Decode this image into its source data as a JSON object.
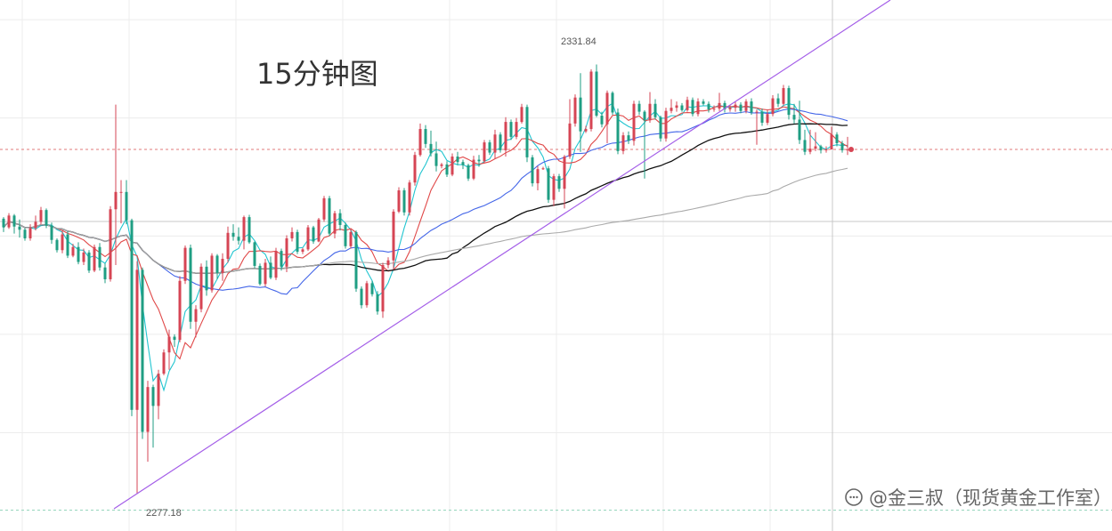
{
  "chart_data": {
    "type": "candlestick",
    "title": "15分钟图",
    "annotations": {
      "high_label": "2331.84",
      "low_label": "2277.18"
    },
    "y_range": [
      2272.5,
      2340.0
    ],
    "grid": true,
    "candles": [
      [
        2312.2,
        2312.4,
        2310.5,
        2311.1
      ],
      [
        2311.1,
        2312.9,
        2310.9,
        2312.6
      ],
      [
        2312.6,
        2312.8,
        2310.3,
        2311.2
      ],
      [
        2311.2,
        2312.1,
        2309.8,
        2310.8
      ],
      [
        2310.8,
        2311.0,
        2309.4,
        2309.7
      ],
      [
        2309.7,
        2311.5,
        2309.4,
        2311.0
      ],
      [
        2311.0,
        2312.6,
        2310.7,
        2311.8
      ],
      [
        2311.8,
        2313.7,
        2311.5,
        2313.3
      ],
      [
        2313.3,
        2313.5,
        2311.0,
        2311.3
      ],
      [
        2311.3,
        2311.7,
        2309.0,
        2309.5
      ],
      [
        2309.5,
        2309.7,
        2307.9,
        2308.2
      ],
      [
        2308.2,
        2310.7,
        2307.8,
        2310.2
      ],
      [
        2310.2,
        2310.6,
        2307.2,
        2307.5
      ],
      [
        2307.5,
        2309.0,
        2307.3,
        2308.6
      ],
      [
        2308.6,
        2309.2,
        2306.4,
        2306.7
      ],
      [
        2306.7,
        2308.4,
        2306.3,
        2307.9
      ],
      [
        2307.9,
        2308.2,
        2305.3,
        2305.6
      ],
      [
        2305.6,
        2308.9,
        2305.4,
        2308.6
      ],
      [
        2308.6,
        2309.1,
        2305.6,
        2306.0
      ],
      [
        2306.0,
        2306.5,
        2304.0,
        2304.5
      ],
      [
        2304.5,
        2313.8,
        2304.2,
        2313.4
      ],
      [
        2313.4,
        2326.7,
        2306.3,
        2315.6
      ],
      [
        2315.6,
        2317.1,
        2311.6,
        2315.6
      ],
      [
        2315.6,
        2317.1,
        2311.5,
        2312.0
      ],
      [
        2312.0,
        2312.2,
        2287.1,
        2287.9
      ],
      [
        2287.9,
        2306.8,
        2277.2,
        2305.7
      ],
      [
        2305.7,
        2306.0,
        2284.2,
        2285.1
      ],
      [
        2285.1,
        2291.6,
        2281.3,
        2290.8
      ],
      [
        2290.8,
        2291.1,
        2283.1,
        2288.4
      ],
      [
        2288.4,
        2293.0,
        2286.7,
        2292.5
      ],
      [
        2292.5,
        2295.6,
        2292.3,
        2295.2
      ],
      [
        2295.2,
        2298.1,
        2293.0,
        2297.2
      ],
      [
        2297.2,
        2297.5,
        2295.9,
        2296.8
      ],
      [
        2296.8,
        2304.9,
        2296.5,
        2304.3
      ],
      [
        2304.3,
        2308.8,
        2303.9,
        2308.5
      ],
      [
        2308.5,
        2308.9,
        2298.2,
        2299.1
      ],
      [
        2299.1,
        2301.2,
        2297.1,
        2300.7
      ],
      [
        2300.7,
        2306.5,
        2300.3,
        2306.1
      ],
      [
        2306.1,
        2306.9,
        2302.4,
        2303.1
      ],
      [
        2303.1,
        2307.8,
        2302.8,
        2307.5
      ],
      [
        2307.5,
        2307.7,
        2304.5,
        2305.3
      ],
      [
        2305.3,
        2307.8,
        2304.3,
        2307.1
      ],
      [
        2307.1,
        2311.2,
        2306.6,
        2310.4
      ],
      [
        2310.4,
        2311.5,
        2309.4,
        2309.9
      ],
      [
        2309.9,
        2311.1,
        2308.9,
        2309.4
      ],
      [
        2309.4,
        2312.6,
        2308.3,
        2312.4
      ],
      [
        2312.4,
        2312.7,
        2309.0,
        2309.2
      ],
      [
        2309.2,
        2309.3,
        2305.9,
        2306.2
      ],
      [
        2306.2,
        2306.5,
        2303.7,
        2303.9
      ],
      [
        2303.9,
        2307.1,
        2303.6,
        2306.6
      ],
      [
        2306.6,
        2307.4,
        2304.5,
        2304.7
      ],
      [
        2304.7,
        2308.5,
        2304.4,
        2308.1
      ],
      [
        2308.1,
        2308.4,
        2305.6,
        2306.1
      ],
      [
        2306.1,
        2310.1,
        2305.4,
        2309.7
      ],
      [
        2309.7,
        2311.1,
        2309.3,
        2310.5
      ],
      [
        2310.5,
        2310.8,
        2307.7,
        2308.0
      ],
      [
        2308.0,
        2308.5,
        2307.7,
        2308.3
      ],
      [
        2308.3,
        2311.4,
        2308.1,
        2311.1
      ],
      [
        2311.1,
        2311.3,
        2309.0,
        2309.3
      ],
      [
        2309.3,
        2312.3,
        2309.2,
        2312.1
      ],
      [
        2312.1,
        2315.1,
        2311.8,
        2314.8
      ],
      [
        2314.8,
        2315.1,
        2310.0,
        2310.3
      ],
      [
        2310.3,
        2313.2,
        2309.7,
        2312.9
      ],
      [
        2312.9,
        2313.4,
        2310.7,
        2311.4
      ],
      [
        2311.4,
        2311.7,
        2308.4,
        2308.7
      ],
      [
        2308.7,
        2310.9,
        2308.4,
        2310.5
      ],
      [
        2310.5,
        2310.7,
        2302.9,
        2303.3
      ],
      [
        2303.3,
        2303.6,
        2300.8,
        2301.2
      ],
      [
        2301.2,
        2304.3,
        2300.9,
        2304.0
      ],
      [
        2304.0,
        2304.3,
        2302.3,
        2302.6
      ],
      [
        2302.6,
        2303.0,
        2300.0,
        2300.4
      ],
      [
        2300.4,
        2306.6,
        2299.6,
        2306.3
      ],
      [
        2306.3,
        2307.3,
        2305.9,
        2306.9
      ],
      [
        2306.9,
        2313.4,
        2305.7,
        2313.1
      ],
      [
        2313.1,
        2316.2,
        2312.9,
        2315.8
      ],
      [
        2315.8,
        2316.1,
        2312.6,
        2313.0
      ],
      [
        2313.0,
        2317.1,
        2312.6,
        2316.8
      ],
      [
        2316.8,
        2320.7,
        2316.4,
        2320.3
      ],
      [
        2320.3,
        2324.3,
        2320.1,
        2323.6
      ],
      [
        2323.6,
        2324.1,
        2321.2,
        2321.7
      ],
      [
        2321.7,
        2323.4,
        2320.1,
        2320.5
      ],
      [
        2320.5,
        2322.0,
        2318.2,
        2318.9
      ],
      [
        2318.9,
        2319.3,
        2318.6,
        2319.1
      ],
      [
        2319.1,
        2319.5,
        2317.5,
        2317.8
      ],
      [
        2317.8,
        2320.5,
        2317.6,
        2320.1
      ],
      [
        2320.1,
        2320.7,
        2319.0,
        2319.4
      ],
      [
        2319.4,
        2319.7,
        2318.5,
        2319.0
      ],
      [
        2319.0,
        2319.2,
        2317.0,
        2317.3
      ],
      [
        2317.3,
        2320.2,
        2317.1,
        2319.7
      ],
      [
        2319.7,
        2320.3,
        2318.8,
        2319.5
      ],
      [
        2319.5,
        2322.2,
        2319.3,
        2321.9
      ],
      [
        2321.9,
        2322.2,
        2320.3,
        2320.6
      ],
      [
        2320.6,
        2323.5,
        2319.8,
        2322.9
      ],
      [
        2322.9,
        2323.2,
        2320.6,
        2320.9
      ],
      [
        2320.9,
        2325.1,
        2320.1,
        2324.5
      ],
      [
        2324.5,
        2324.8,
        2322.2,
        2322.6
      ],
      [
        2322.6,
        2325.0,
        2322.3,
        2324.5
      ],
      [
        2324.5,
        2326.8,
        2324.3,
        2326.4
      ],
      [
        2326.4,
        2326.7,
        2319.4,
        2320.0
      ],
      [
        2320.0,
        2320.3,
        2316.3,
        2316.7
      ],
      [
        2316.7,
        2318.9,
        2315.8,
        2318.5
      ],
      [
        2318.5,
        2318.8,
        2318.4,
        2318.6
      ],
      [
        2318.6,
        2318.9,
        2314.2,
        2314.6
      ],
      [
        2314.6,
        2317.9,
        2313.8,
        2317.6
      ],
      [
        2317.6,
        2317.9,
        2315.6,
        2316.0
      ],
      [
        2316.0,
        2320.3,
        2313.5,
        2320.1
      ],
      [
        2320.1,
        2327.4,
        2319.8,
        2324.3
      ],
      [
        2324.3,
        2328.0,
        2323.9,
        2327.6
      ],
      [
        2327.6,
        2330.7,
        2320.7,
        2323.3
      ],
      [
        2323.3,
        2324.0,
        2323.1,
        2323.6
      ],
      [
        2323.6,
        2331.2,
        2323.3,
        2330.9
      ],
      [
        2330.9,
        2331.8,
        2325.1,
        2325.3
      ],
      [
        2325.3,
        2325.8,
        2323.8,
        2324.2
      ],
      [
        2324.2,
        2328.5,
        2321.8,
        2328.2
      ],
      [
        2328.2,
        2328.4,
        2325.4,
        2325.7
      ],
      [
        2325.7,
        2326.2,
        2320.4,
        2320.8
      ],
      [
        2320.8,
        2323.2,
        2320.4,
        2322.8
      ],
      [
        2322.8,
        2323.3,
        2321.7,
        2322.1
      ],
      [
        2322.1,
        2327.2,
        2321.5,
        2326.8
      ],
      [
        2326.8,
        2327.2,
        2325.4,
        2325.8
      ],
      [
        2325.8,
        2326.0,
        2317.3,
        2324.7
      ],
      [
        2324.7,
        2328.3,
        2324.4,
        2326.8
      ],
      [
        2326.8,
        2327.4,
        2324.8,
        2325.1
      ],
      [
        2325.1,
        2325.3,
        2322.0,
        2322.4
      ],
      [
        2322.4,
        2326.3,
        2322.0,
        2325.9
      ],
      [
        2325.9,
        2327.4,
        2325.6,
        2326.3
      ],
      [
        2326.3,
        2327.1,
        2325.8,
        2326.6
      ],
      [
        2326.6,
        2326.9,
        2325.8,
        2326.0
      ],
      [
        2326.0,
        2327.7,
        2325.8,
        2327.3
      ],
      [
        2327.3,
        2327.6,
        2325.2,
        2325.5
      ],
      [
        2325.5,
        2327.5,
        2325.2,
        2327.1
      ],
      [
        2327.1,
        2327.4,
        2326.6,
        2326.8
      ],
      [
        2326.8,
        2327.1,
        2325.7,
        2326.1
      ],
      [
        2326.1,
        2326.6,
        2325.8,
        2326.2
      ],
      [
        2326.2,
        2328.2,
        2325.9,
        2326.9
      ],
      [
        2326.9,
        2327.2,
        2325.7,
        2326.1
      ],
      [
        2326.1,
        2326.6,
        2325.8,
        2326.3
      ],
      [
        2326.3,
        2327.1,
        2325.8,
        2326.7
      ],
      [
        2326.7,
        2327.0,
        2325.6,
        2325.9
      ],
      [
        2325.9,
        2327.4,
        2325.6,
        2327.1
      ],
      [
        2327.1,
        2327.5,
        2325.4,
        2325.7
      ],
      [
        2325.7,
        2326.1,
        2321.6,
        2325.8
      ],
      [
        2325.8,
        2326.2,
        2324.0,
        2324.4
      ],
      [
        2324.4,
        2326.1,
        2324.1,
        2325.5
      ],
      [
        2325.5,
        2327.9,
        2325.2,
        2327.5
      ],
      [
        2327.5,
        2328.1,
        2326.4,
        2326.8
      ],
      [
        2326.8,
        2329.2,
        2326.6,
        2328.8
      ],
      [
        2328.8,
        2329.1,
        2324.8,
        2325.4
      ],
      [
        2325.4,
        2326.8,
        2324.3,
        2324.8
      ],
      [
        2324.8,
        2327.2,
        2321.7,
        2322.2
      ],
      [
        2322.2,
        2323.5,
        2320.3,
        2320.7
      ],
      [
        2320.7,
        2323.5,
        2320.4,
        2321.1
      ],
      [
        2321.1,
        2323.2,
        2320.8,
        2321.4
      ],
      [
        2321.4,
        2321.6,
        2320.5,
        2320.9
      ],
      [
        2320.9,
        2321.4,
        2320.6,
        2321.0
      ],
      [
        2321.0,
        2323.9,
        2321.2,
        2322.9
      ],
      [
        2322.9,
        2323.2,
        2321.4,
        2321.8
      ],
      [
        2321.8,
        2322.1,
        2320.6,
        2320.9
      ],
      [
        2320.9,
        2322.6,
        2320.3,
        2321.0
      ]
    ],
    "series": [
      {
        "name": "MA-cyan",
        "color": "#22c5d0"
      },
      {
        "name": "MA-red",
        "color": "#e04848"
      },
      {
        "name": "MA-blue",
        "color": "#4466e8"
      },
      {
        "name": "MA-black",
        "color": "#111111"
      },
      {
        "name": "MA-gray",
        "color": "#aaaaaa"
      }
    ],
    "colors": {
      "up": "#d64554",
      "down": "#1f9e83",
      "trendline": "#a45ee8",
      "price_line": "#e07a7a",
      "low_line": "#8fd3b8"
    }
  },
  "watermark": {
    "text": "@金三叔（现货黄金工作室）",
    "icon": "chat-icon"
  }
}
